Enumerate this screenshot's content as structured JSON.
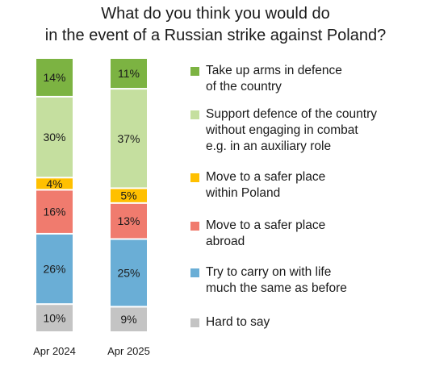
{
  "chart_data": {
    "type": "bar",
    "stacked": true,
    "orientation": "vertical",
    "title_line1": "What do you think you would do",
    "title_line2": "in the event of a Russian strike against Poland?",
    "categories": [
      "Apr 2024",
      "Apr 2025"
    ],
    "ylim": [
      0,
      100
    ],
    "grid": false,
    "legend_position": "right",
    "series": [
      {
        "name": "Take up arms in defence of the country",
        "legend_lines": [
          "Take up arms in defence",
          "of the country"
        ],
        "values": [
          14,
          11
        ],
        "color": "#7cb342"
      },
      {
        "name": "Support defence of the country without engaging in combat e.g. in an auxiliary role",
        "legend_lines": [
          "Support defence of the country",
          "without engaging in combat",
          "e.g. in an auxiliary role"
        ],
        "values": [
          30,
          37
        ],
        "color": "#c5df9f"
      },
      {
        "name": "Move to a safer place within Poland",
        "legend_lines": [
          "Move to a safer place",
          "within Poland"
        ],
        "values": [
          4,
          5
        ],
        "color": "#ffc000"
      },
      {
        "name": "Move to a safer place abroad",
        "legend_lines": [
          "Move to a safer place",
          "abroad"
        ],
        "values": [
          16,
          13
        ],
        "color": "#f07b6e"
      },
      {
        "name": "Try to carry on with life much the same as before",
        "legend_lines": [
          "Try to carry on with life",
          "much the same as before"
        ],
        "values": [
          26,
          25
        ],
        "color": "#6aaed6"
      },
      {
        "name": "Hard to say",
        "legend_lines": [
          "Hard to say"
        ],
        "values": [
          10,
          9
        ],
        "color": "#c4c4c4"
      }
    ],
    "value_suffix": "%"
  }
}
